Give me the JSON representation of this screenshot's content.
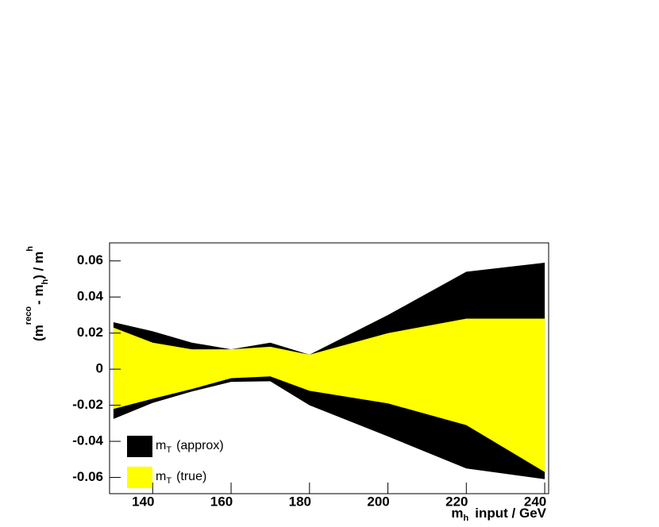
{
  "chart_data": {
    "type": "band",
    "x": [
      130,
      140,
      150,
      160,
      170,
      180,
      200,
      220,
      240
    ],
    "xlim": [
      129,
      241
    ],
    "xticks": [
      140,
      160,
      180,
      200,
      220,
      240
    ],
    "ylim": [
      -0.069,
      0.07
    ],
    "yticks": [
      0.06,
      0.04,
      0.02,
      0,
      -0.02,
      -0.04,
      -0.06
    ],
    "xlabel": {
      "main": "m",
      "sub": "h",
      "rest": "input / GeV"
    },
    "ylabel": {
      "a": "(m",
      "sup": "reco",
      "b": "- m",
      "sub1": "h",
      "c": ") / m",
      "sub2": "h"
    },
    "series": [
      {
        "name": "m",
        "name_sub": "T",
        "name_rest": "(approx)",
        "color": "#000000",
        "upper": [
          0.026,
          0.021,
          0.0147,
          0.011,
          0.0147,
          0.008,
          0.03,
          0.054,
          0.059
        ],
        "lower": [
          -0.0276,
          -0.0187,
          -0.0124,
          -0.007,
          -0.0067,
          -0.02,
          -0.0373,
          -0.055,
          -0.061
        ]
      },
      {
        "name": "m",
        "name_sub": "T",
        "name_rest": "(true)",
        "color": "#ffff00",
        "upper": [
          0.023,
          0.0147,
          0.011,
          0.011,
          0.0124,
          0.008,
          0.02,
          0.028,
          0.028
        ],
        "lower": [
          -0.022,
          -0.0164,
          -0.011,
          -0.005,
          -0.004,
          -0.012,
          -0.019,
          -0.031,
          -0.057
        ]
      }
    ]
  }
}
